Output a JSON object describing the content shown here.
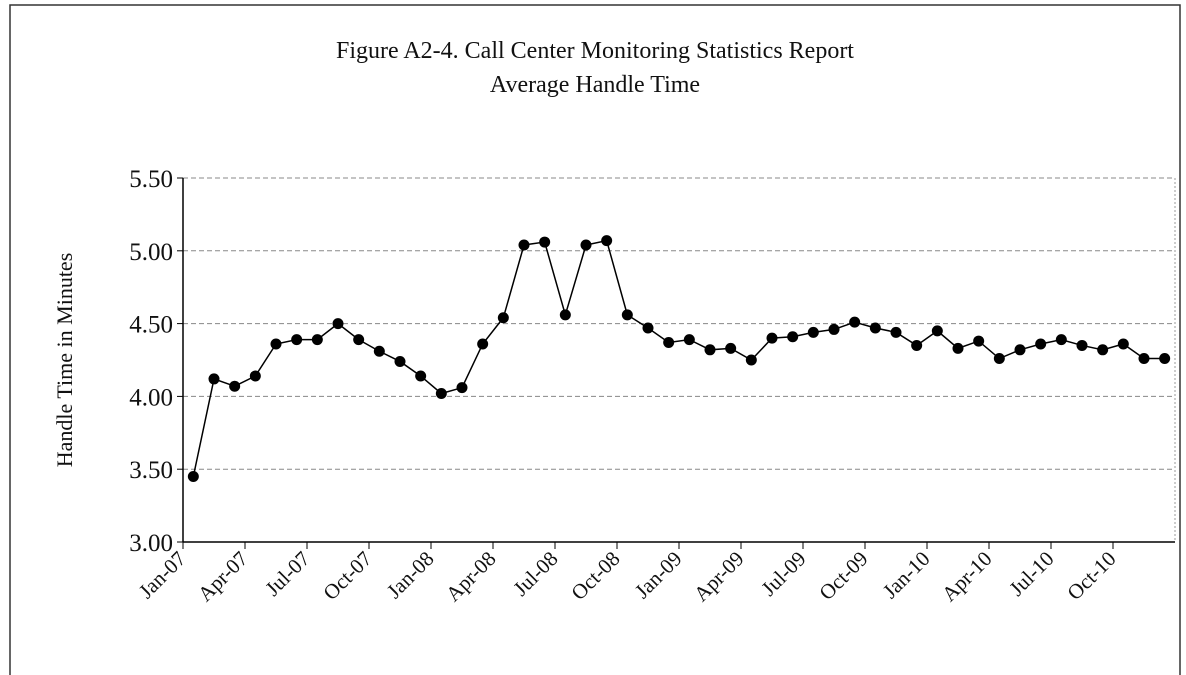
{
  "chart_data": {
    "type": "line",
    "title": "Figure A2-4.  Call Center Monitoring Statistics Report",
    "subtitle": "Average Handle Time",
    "y_label": "Handle Time in Minutes",
    "categories": [
      "Jan-07",
      null,
      null,
      "Apr-07",
      null,
      null,
      "Jul-07",
      null,
      null,
      "Oct-07",
      null,
      null,
      "Jan-08",
      null,
      null,
      "Apr-08",
      null,
      null,
      "Jul-08",
      null,
      null,
      "Oct-08",
      null,
      null,
      "Jan-09",
      null,
      null,
      "Apr-09",
      null,
      null,
      "Jul-09",
      null,
      null,
      "Oct-09",
      null,
      null,
      "Jan-10",
      null,
      null,
      "Apr-10",
      null,
      null,
      "Jul-10",
      null,
      null,
      "Oct-10",
      null,
      null
    ],
    "values": [
      3.45,
      4.12,
      4.07,
      4.14,
      4.36,
      4.39,
      4.39,
      4.5,
      4.39,
      4.31,
      4.24,
      4.14,
      4.02,
      4.06,
      4.36,
      4.54,
      5.04,
      5.06,
      4.56,
      5.04,
      5.07,
      4.56,
      4.47,
      4.37,
      4.39,
      4.32,
      4.33,
      4.25,
      4.4,
      4.41,
      4.44,
      4.46,
      4.51,
      4.47,
      4.44,
      4.35,
      4.45,
      4.33,
      4.38,
      4.26,
      4.32,
      4.36,
      4.39,
      4.35,
      4.32,
      4.36,
      4.26,
      4.26
    ],
    "color": "#000000",
    "ylim": [
      3,
      5.5
    ],
    "yticks": [
      {
        "value": 3,
        "label": "3.00"
      },
      {
        "value": 3.5,
        "label": "3.50"
      },
      {
        "value": 4,
        "label": "4.00"
      },
      {
        "value": 4.5,
        "label": "4.50"
      },
      {
        "value": 5,
        "label": "5.00"
      },
      {
        "value": 5.5,
        "label": "5.50"
      }
    ],
    "grid": true
  }
}
